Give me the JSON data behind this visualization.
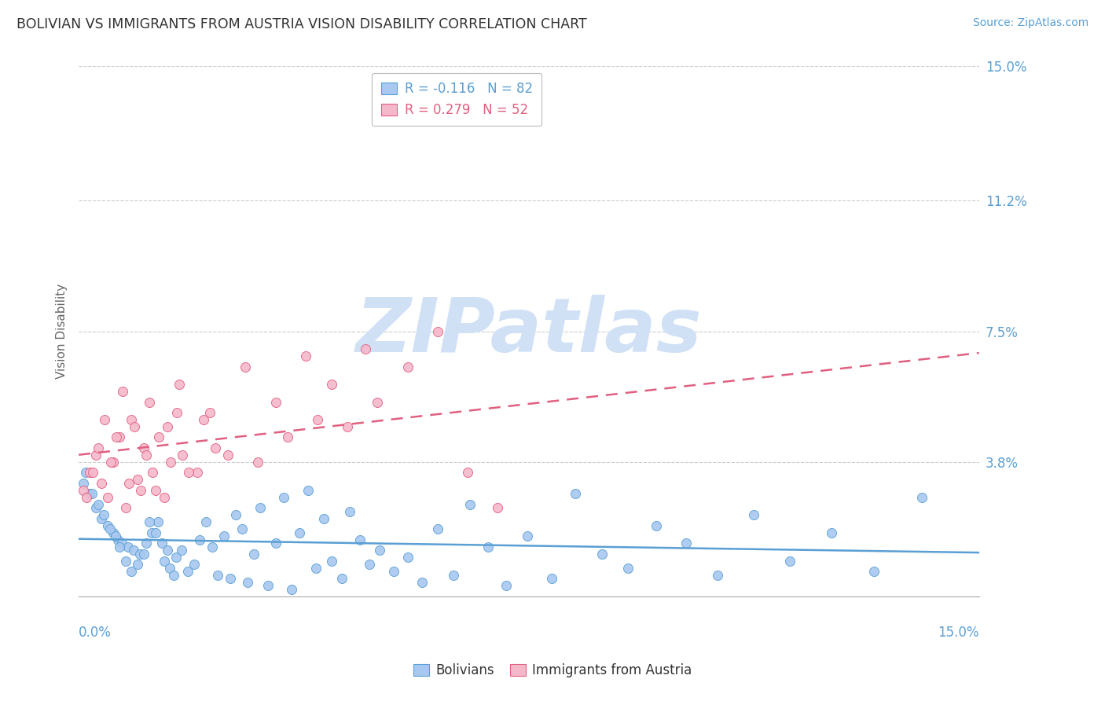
{
  "title": "BOLIVIAN VS IMMIGRANTS FROM AUSTRIA VISION DISABILITY CORRELATION CHART",
  "source": "Source: ZipAtlas.com",
  "ylabel": "Vision Disability",
  "yticks": [
    0.0,
    3.8,
    7.5,
    11.2,
    15.0
  ],
  "ytick_labels": [
    "",
    "3.8%",
    "7.5%",
    "11.2%",
    "15.0%"
  ],
  "xlim": [
    0.0,
    15.0
  ],
  "ylim": [
    0.0,
    15.0
  ],
  "bolivians_R": -0.116,
  "bolivians_N": 82,
  "austria_R": 0.279,
  "austria_N": 52,
  "bolivian_color": "#a8c8f0",
  "austria_color": "#f5b8cb",
  "bolivian_edge_color": "#5a9fd4",
  "austria_edge_color": "#e06080",
  "bolivian_line_color": "#5a9fd4",
  "austria_line_color": "#e06080",
  "background_color": "#ffffff",
  "grid_color": "#cccccc",
  "watermark_text": "ZIPatlas",
  "watermark_color": "#d0e0f5",
  "title_fontsize": 12.5,
  "source_fontsize": 10,
  "axis_label_fontsize": 11,
  "tick_fontsize": 12,
  "legend_fontsize": 12,
  "tick_label_color": "#5a9fd4",
  "bolivians_x": [
    0.18,
    0.28,
    0.38,
    0.48,
    0.58,
    0.65,
    0.72,
    0.82,
    0.92,
    1.02,
    1.12,
    1.22,
    1.32,
    1.42,
    1.52,
    1.62,
    1.72,
    1.82,
    1.92,
    2.02,
    2.12,
    2.22,
    2.32,
    2.42,
    2.52,
    2.62,
    2.72,
    2.82,
    2.92,
    3.02,
    3.15,
    3.28,
    3.42,
    3.55,
    3.68,
    3.82,
    3.95,
    4.08,
    4.22,
    4.38,
    4.52,
    4.68,
    4.85,
    5.02,
    5.25,
    5.48,
    5.72,
    5.98,
    6.25,
    6.52,
    6.82,
    7.12,
    7.48,
    7.88,
    8.28,
    8.72,
    9.15,
    9.62,
    10.12,
    10.65,
    11.25,
    11.85,
    12.55,
    13.25,
    14.05,
    0.08,
    0.12,
    0.22,
    0.32,
    0.42,
    0.52,
    0.62,
    0.68,
    0.78,
    0.88,
    0.98,
    1.08,
    1.18,
    1.28,
    1.38,
    1.48,
    1.58
  ],
  "bolivians_y": [
    2.9,
    2.5,
    2.2,
    2.0,
    1.8,
    1.6,
    1.5,
    1.4,
    1.3,
    1.2,
    1.5,
    1.8,
    2.1,
    1.0,
    0.8,
    1.1,
    1.3,
    0.7,
    0.9,
    1.6,
    2.1,
    1.4,
    0.6,
    1.7,
    0.5,
    2.3,
    1.9,
    0.4,
    1.2,
    2.5,
    0.3,
    1.5,
    2.8,
    0.2,
    1.8,
    3.0,
    0.8,
    2.2,
    1.0,
    0.5,
    2.4,
    1.6,
    0.9,
    1.3,
    0.7,
    1.1,
    0.4,
    1.9,
    0.6,
    2.6,
    1.4,
    0.3,
    1.7,
    0.5,
    2.9,
    1.2,
    0.8,
    2.0,
    1.5,
    0.6,
    2.3,
    1.0,
    1.8,
    0.7,
    2.8,
    3.2,
    3.5,
    2.9,
    2.6,
    2.3,
    1.9,
    1.7,
    1.4,
    1.0,
    0.7,
    0.9,
    1.2,
    2.1,
    1.8,
    1.5,
    1.3,
    0.6
  ],
  "austria_x": [
    0.08,
    0.18,
    0.28,
    0.38,
    0.48,
    0.58,
    0.68,
    0.78,
    0.88,
    0.98,
    1.08,
    1.18,
    1.28,
    1.48,
    1.68,
    1.98,
    2.18,
    2.48,
    2.78,
    2.98,
    3.28,
    3.48,
    3.78,
    3.98,
    4.22,
    4.48,
    4.78,
    4.98,
    5.48,
    5.98,
    6.48,
    6.98,
    0.13,
    0.23,
    0.33,
    0.43,
    0.53,
    0.63,
    0.73,
    0.83,
    0.93,
    1.03,
    1.13,
    1.23,
    1.33,
    1.43,
    1.53,
    1.63,
    1.73,
    1.83,
    2.08,
    2.28
  ],
  "austria_y": [
    3.0,
    3.5,
    4.0,
    3.2,
    2.8,
    3.8,
    4.5,
    2.5,
    5.0,
    3.3,
    4.2,
    5.5,
    3.0,
    4.8,
    6.0,
    3.5,
    5.2,
    4.0,
    6.5,
    3.8,
    5.5,
    4.5,
    6.8,
    5.0,
    6.0,
    4.8,
    7.0,
    5.5,
    6.5,
    7.5,
    3.5,
    2.5,
    2.8,
    3.5,
    4.2,
    5.0,
    3.8,
    4.5,
    5.8,
    3.2,
    4.8,
    3.0,
    4.0,
    3.5,
    4.5,
    2.8,
    3.8,
    5.2,
    4.0,
    3.5,
    5.0,
    4.2
  ]
}
